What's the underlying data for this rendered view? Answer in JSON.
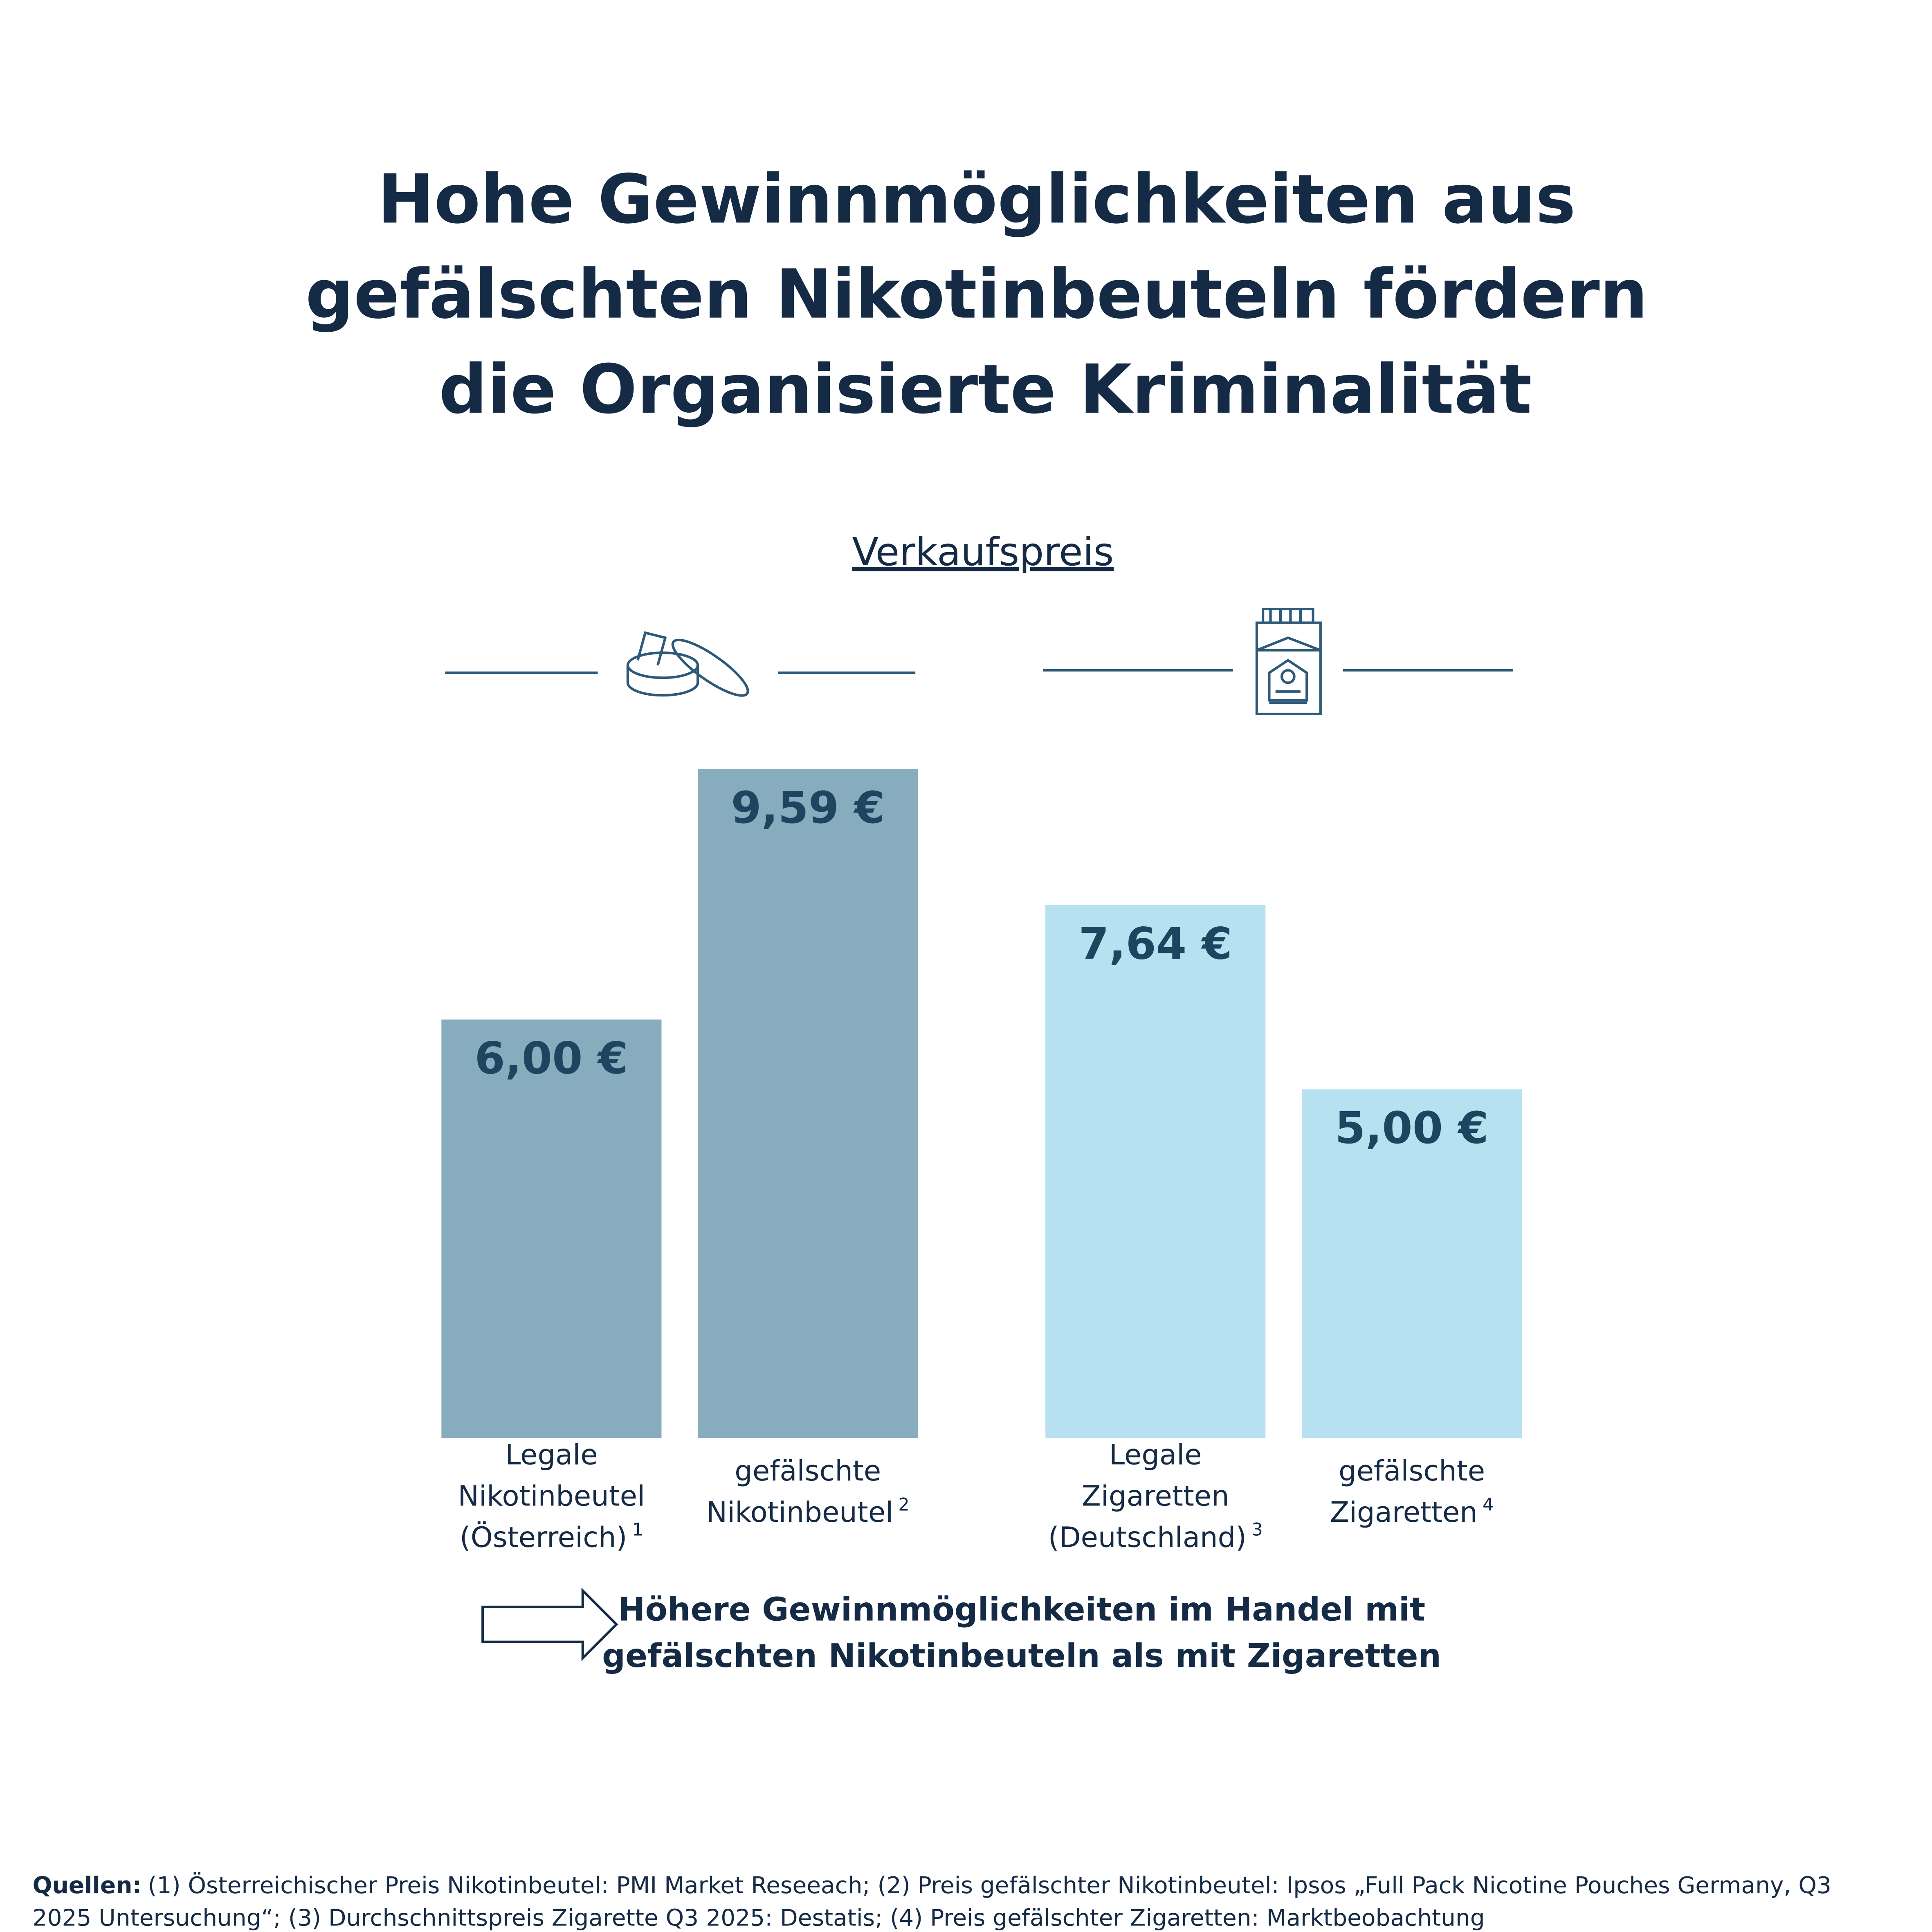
{
  "chart_data": {
    "type": "bar",
    "title": [
      "Hohe Gewinnmöglichkeiten aus",
      "gefälschten Nikotinbeuteln fördern",
      "die Organisierte Kriminalität"
    ],
    "subtitle": "Verkaufspreis",
    "categories": [
      [
        "Legale",
        "Nikotinbeutel",
        "(Österreich)"
      ],
      [
        "gefälschte",
        "Nikotinbeutel"
      ],
      [
        "Legale",
        "Zigaretten",
        "(Deutschland)"
      ],
      [
        "gefälschte",
        "Zigaretten"
      ]
    ],
    "category_notes": [
      "1",
      "2",
      "3",
      "4"
    ],
    "values": [
      6.0,
      9.59,
      7.64,
      5.0
    ],
    "value_labels": [
      "6,00 €",
      "9,59 €",
      "7,64 €",
      "5,00 €"
    ],
    "colors": [
      "#87acbe",
      "#87acbe",
      "#b7e1f0",
      "#b7e1f0"
    ],
    "conclusion": [
      "Höhere Gewinnmöglichkeiten im Handel mit",
      "gefälschten Nikotinbeuteln als mit Zigaretten"
    ],
    "sources_label": "Quellen:",
    "sources": [
      "(1) Österreichischer Preis Nikotinbeutel: PMI Market Reseeach; (2) Preis gefälschter Nikotinbeutel: Ipsos „Full Pack Nicotine Pouches Germany, Q3",
      "2025 Untersuchung“; (3) Durchschnittspreis Zigarette Q3 2025: Destatis; (4) Preis gefälschter Zigaretten: Marktbeobachtung"
    ]
  }
}
